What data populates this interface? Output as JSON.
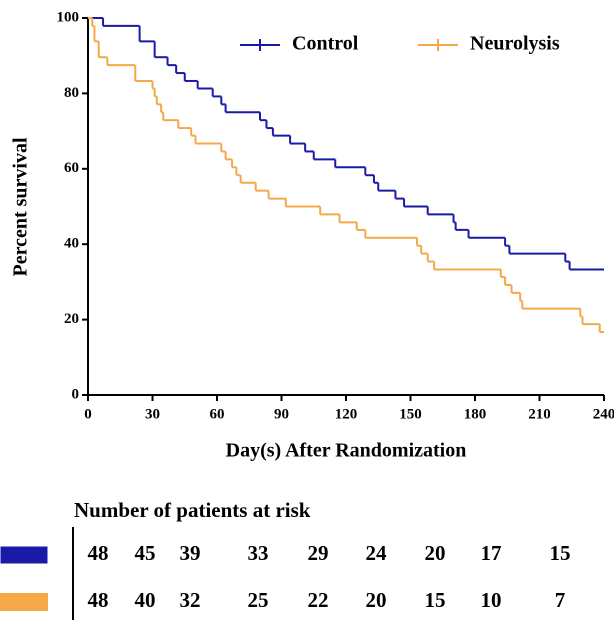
{
  "chart_data": {
    "type": "line",
    "step": true,
    "xlabel": "Day(s) After Randomization",
    "ylabel": "Percent survival",
    "xlim": [
      0,
      240
    ],
    "ylim": [
      0,
      100
    ],
    "xticks": [
      0,
      30,
      60,
      90,
      120,
      150,
      180,
      210,
      240
    ],
    "yticks": [
      0,
      20,
      40,
      60,
      80,
      100
    ],
    "legend": "top-right",
    "series": [
      {
        "name": "Control",
        "color": "#1a1aa6",
        "x": [
          0,
          7,
          24,
          31,
          37,
          41,
          45,
          51,
          58,
          62,
          64,
          80,
          83,
          86,
          94,
          101,
          105,
          115,
          129,
          133,
          135,
          143,
          147,
          158,
          170,
          171,
          177,
          194,
          196,
          222,
          224,
          240
        ],
        "values": [
          100,
          97.9,
          93.8,
          89.6,
          87.5,
          85.4,
          83.3,
          81.3,
          79.2,
          77.1,
          75,
          72.9,
          70.8,
          68.8,
          66.7,
          64.6,
          62.5,
          60.4,
          58.3,
          56.3,
          54.2,
          52.1,
          50,
          47.9,
          45.8,
          43.8,
          41.7,
          39.6,
          37.5,
          35.4,
          33.3,
          33.3
        ]
      },
      {
        "name": "Neurolysis",
        "color": "#f5a847",
        "x": [
          0,
          2,
          3,
          5,
          9,
          22,
          30,
          31,
          32,
          34,
          35,
          42,
          48,
          50,
          62,
          64,
          67,
          69,
          71,
          78,
          84,
          92,
          108,
          117,
          125,
          129,
          153,
          155,
          158,
          161,
          192,
          194,
          197,
          201,
          202,
          229,
          230,
          238,
          240
        ],
        "values": [
          100,
          97.9,
          93.8,
          89.6,
          87.5,
          83.3,
          81.3,
          79.2,
          77.1,
          75,
          72.9,
          70.8,
          68.8,
          66.7,
          64.6,
          62.5,
          60.4,
          58.3,
          56.3,
          54.2,
          52.1,
          50,
          47.9,
          45.8,
          43.8,
          41.7,
          39.6,
          37.5,
          35.4,
          33.3,
          31.3,
          29.2,
          27.1,
          25,
          22.9,
          20.8,
          18.8,
          16.7,
          16.7
        ]
      }
    ]
  },
  "risk_table": {
    "title": "Number of patients at risk",
    "colors": [
      "#1a1aa6",
      "#f5a847"
    ],
    "rows": [
      [
        48,
        45,
        39,
        33,
        29,
        24,
        20,
        17,
        15
      ],
      [
        48,
        40,
        32,
        25,
        22,
        20,
        15,
        10,
        7
      ]
    ]
  }
}
